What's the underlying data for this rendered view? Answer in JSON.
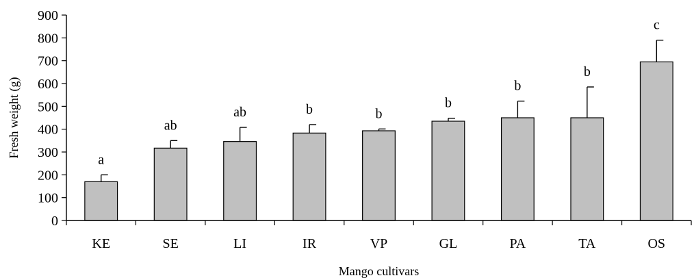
{
  "chart_data": {
    "type": "bar",
    "title": "",
    "xlabel": "Mango cultivars",
    "ylabel": "Fresh weight (g)",
    "ylim": [
      0,
      900
    ],
    "yticks": [
      0,
      100,
      200,
      300,
      400,
      500,
      600,
      700,
      800,
      900
    ],
    "yticks_text": [
      "0",
      "100",
      "200",
      "300",
      "400",
      "500",
      "600",
      "700",
      "800",
      "900"
    ],
    "categories": [
      "KE",
      "SE",
      "LI",
      "IR",
      "VP",
      "GL",
      "PA",
      "TA",
      "OS"
    ],
    "values": [
      170,
      317,
      346,
      383,
      393,
      435,
      450,
      450,
      695
    ],
    "error_upper": [
      30,
      33,
      62,
      37,
      8,
      13,
      73,
      135,
      95
    ],
    "significance_letters": [
      "a",
      "ab",
      "ab",
      "b",
      "b",
      "b",
      "b",
      "b",
      "c"
    ],
    "grid": false,
    "legend": "none",
    "colors": {
      "bar_fill": "#c0c0c0",
      "bar_stroke": "#000000"
    }
  }
}
